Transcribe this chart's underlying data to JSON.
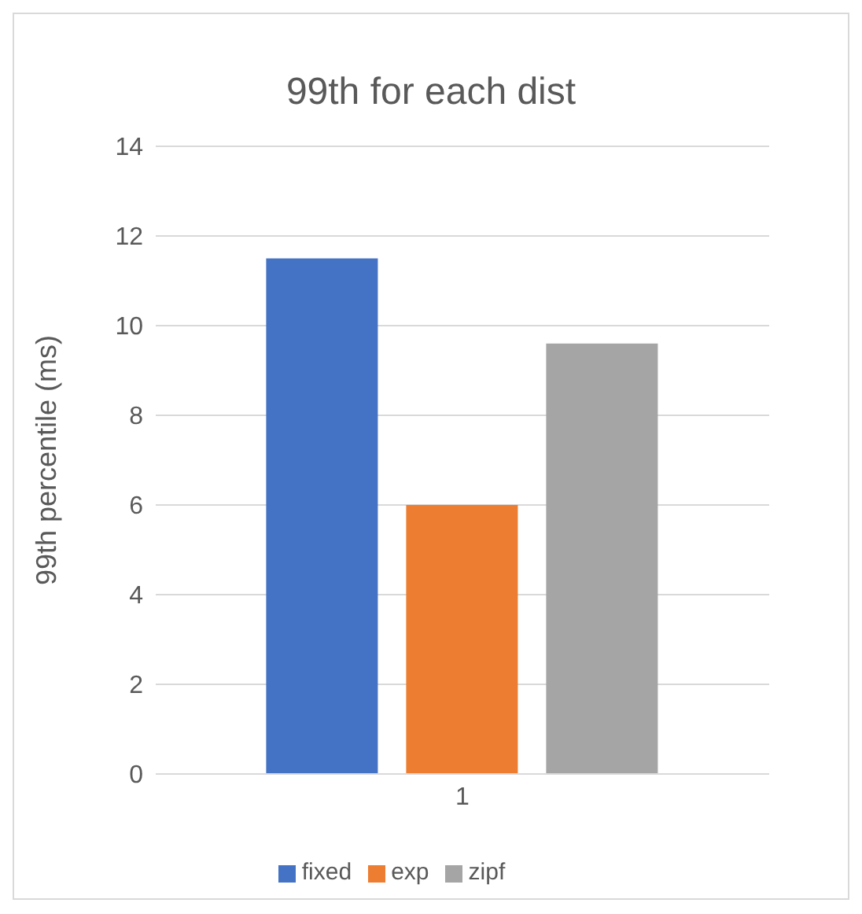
{
  "chart_data": {
    "type": "bar",
    "title": "99th for each dist",
    "ylabel": "99th percentile (ms)",
    "categories": [
      "1"
    ],
    "series": [
      {
        "name": "fixed",
        "color": "#4472c4",
        "values": [
          11.5
        ]
      },
      {
        "name": "exp",
        "color": "#ed7d31",
        "values": [
          6.0
        ]
      },
      {
        "name": "zipf",
        "color": "#a5a5a5",
        "values": [
          9.6
        ]
      }
    ],
    "ylim": [
      0,
      14
    ],
    "yticks": [
      0,
      2,
      4,
      6,
      8,
      10,
      12,
      14
    ],
    "grid": "y",
    "legend": "bottom"
  }
}
